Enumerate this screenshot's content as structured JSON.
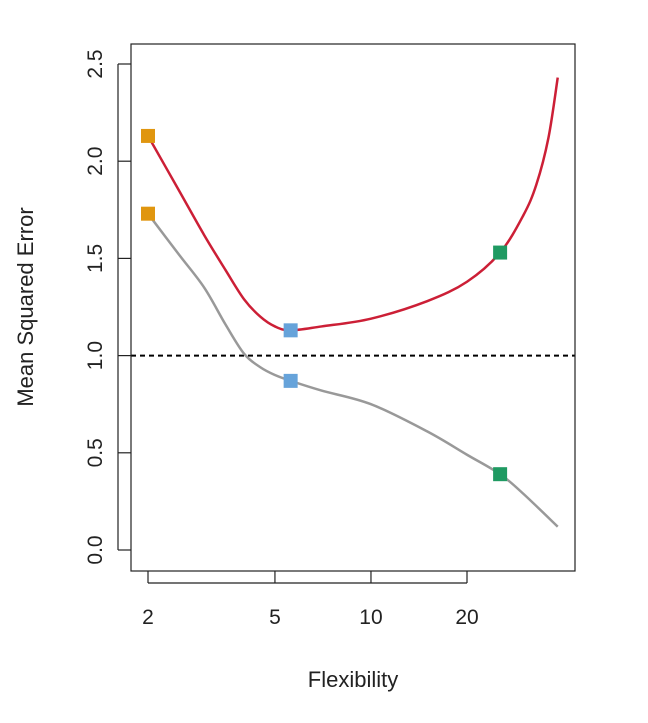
{
  "chart_data": {
    "type": "line",
    "title": "",
    "xlabel": "Flexibility",
    "ylabel": "Mean Squared Error",
    "x_scale": "log",
    "xlim": [
      1.9,
      42
    ],
    "ylim": [
      -0.1,
      2.55
    ],
    "x_ticks": [
      2,
      5,
      10,
      20
    ],
    "y_ticks": [
      "0.0",
      "0.5",
      "1.0",
      "1.5",
      "2.0",
      "2.5"
    ],
    "grid": false,
    "reference_line": {
      "y": 1.0,
      "style": "dashed",
      "color": "#000000"
    },
    "series": [
      {
        "color": "#cc1f36",
        "x": [
          2,
          2.5,
          3,
          3.5,
          4,
          4.5,
          5,
          5.6,
          7,
          10,
          15,
          20,
          25.4,
          30,
          33,
          36,
          38.5
        ],
        "y": [
          2.13,
          1.85,
          1.62,
          1.44,
          1.29,
          1.2,
          1.15,
          1.13,
          1.15,
          1.19,
          1.28,
          1.38,
          1.53,
          1.72,
          1.88,
          2.12,
          2.43
        ]
      },
      {
        "color": "#999999",
        "x": [
          2,
          2.5,
          3,
          3.5,
          4,
          4.5,
          5,
          5.6,
          7,
          10,
          15,
          20,
          25.4,
          30,
          38.5
        ],
        "y": [
          1.73,
          1.52,
          1.35,
          1.16,
          1.01,
          0.94,
          0.9,
          0.87,
          0.82,
          0.75,
          0.61,
          0.49,
          0.39,
          0.29,
          0.12
        ]
      }
    ],
    "markers": [
      {
        "x": 2,
        "y": 2.13,
        "color": "#e0960f"
      },
      {
        "x": 2,
        "y": 1.73,
        "color": "#e0960f"
      },
      {
        "x": 5.6,
        "y": 1.13,
        "color": "#66a3da"
      },
      {
        "x": 5.6,
        "y": 0.87,
        "color": "#66a3da"
      },
      {
        "x": 25.4,
        "y": 1.53,
        "color": "#1f9a62"
      },
      {
        "x": 25.4,
        "y": 0.39,
        "color": "#1f9a62"
      }
    ]
  }
}
